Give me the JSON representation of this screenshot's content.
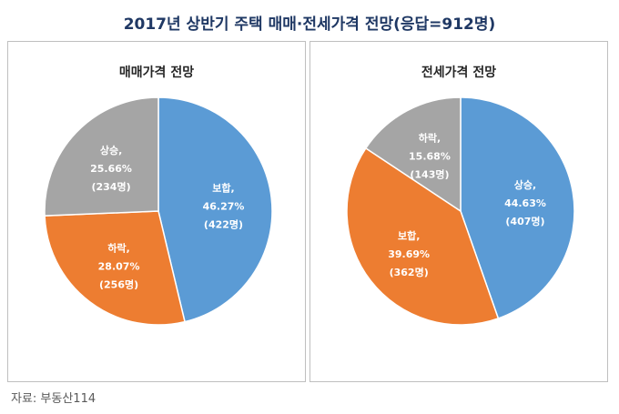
{
  "title": "2017년 상반기 주택 매매·전세가격 전망(응답=912명)",
  "source": "자료: 부동산114",
  "colors": {
    "up": "#a5a5a5",
    "flat": "#5b9bd5",
    "down": "#ed7d31",
    "title": "#1f3864"
  },
  "chart_data": [
    {
      "type": "pie",
      "title": "매매가격 전망",
      "slices": [
        {
          "label": "보합,",
          "percent": "46.27%",
          "count": "(422명)",
          "value": 46.27,
          "color": "#5b9bd5"
        },
        {
          "label": "하락,",
          "percent": "28.07%",
          "count": "(256명)",
          "value": 28.07,
          "color": "#ed7d31"
        },
        {
          "label": "상승,",
          "percent": "25.66%",
          "count": "(234명)",
          "value": 25.66,
          "color": "#a5a5a5"
        }
      ]
    },
    {
      "type": "pie",
      "title": "전세가격 전망",
      "slices": [
        {
          "label": "상승,",
          "percent": "44.63%",
          "count": "(407명)",
          "value": 44.63,
          "color": "#5b9bd5"
        },
        {
          "label": "보합,",
          "percent": "39.69%",
          "count": "(362명)",
          "value": 39.69,
          "color": "#ed7d31"
        },
        {
          "label": "하락,",
          "percent": "15.68%",
          "count": "(143명)",
          "value": 15.68,
          "color": "#a5a5a5"
        }
      ]
    }
  ]
}
